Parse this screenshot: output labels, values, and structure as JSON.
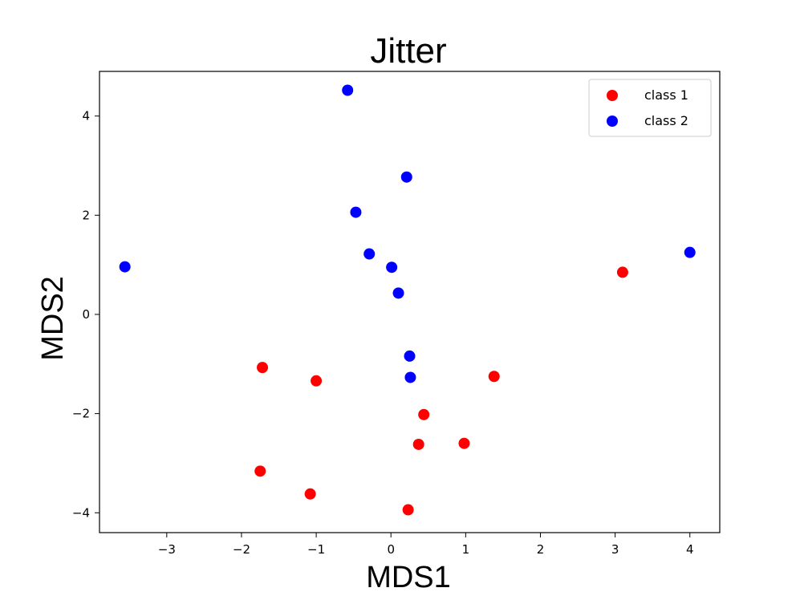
{
  "chart_data": {
    "type": "scatter",
    "title": "Jitter",
    "xlabel": "MDS1",
    "ylabel": "MDS2",
    "xlim": [
      -3.9,
      4.4
    ],
    "ylim": [
      -4.4,
      4.9
    ],
    "xticks": [
      -3,
      -2,
      -1,
      0,
      1,
      2,
      3,
      4
    ],
    "yticks": [
      -4,
      -2,
      0,
      2,
      4
    ],
    "grid": false,
    "legend_position": "top-right",
    "series": [
      {
        "name": "class 1",
        "color": "#ff0000",
        "points": [
          {
            "x": -1.72,
            "y": -1.07
          },
          {
            "x": -1.0,
            "y": -1.34
          },
          {
            "x": -1.75,
            "y": -3.16
          },
          {
            "x": -1.08,
            "y": -3.62
          },
          {
            "x": 0.23,
            "y": -3.94
          },
          {
            "x": 0.37,
            "y": -2.62
          },
          {
            "x": 0.44,
            "y": -2.02
          },
          {
            "x": 0.98,
            "y": -2.6
          },
          {
            "x": 1.38,
            "y": -1.25
          },
          {
            "x": 3.1,
            "y": 0.85
          }
        ]
      },
      {
        "name": "class 2",
        "color": "#0000ff",
        "points": [
          {
            "x": -3.56,
            "y": 0.96
          },
          {
            "x": -0.58,
            "y": 4.52
          },
          {
            "x": 0.21,
            "y": 2.77
          },
          {
            "x": -0.47,
            "y": 2.06
          },
          {
            "x": -0.29,
            "y": 1.22
          },
          {
            "x": 0.01,
            "y": 0.95
          },
          {
            "x": 0.1,
            "y": 0.43
          },
          {
            "x": 0.25,
            "y": -0.84
          },
          {
            "x": 0.26,
            "y": -1.27
          },
          {
            "x": 4.0,
            "y": 1.25
          }
        ]
      }
    ]
  }
}
